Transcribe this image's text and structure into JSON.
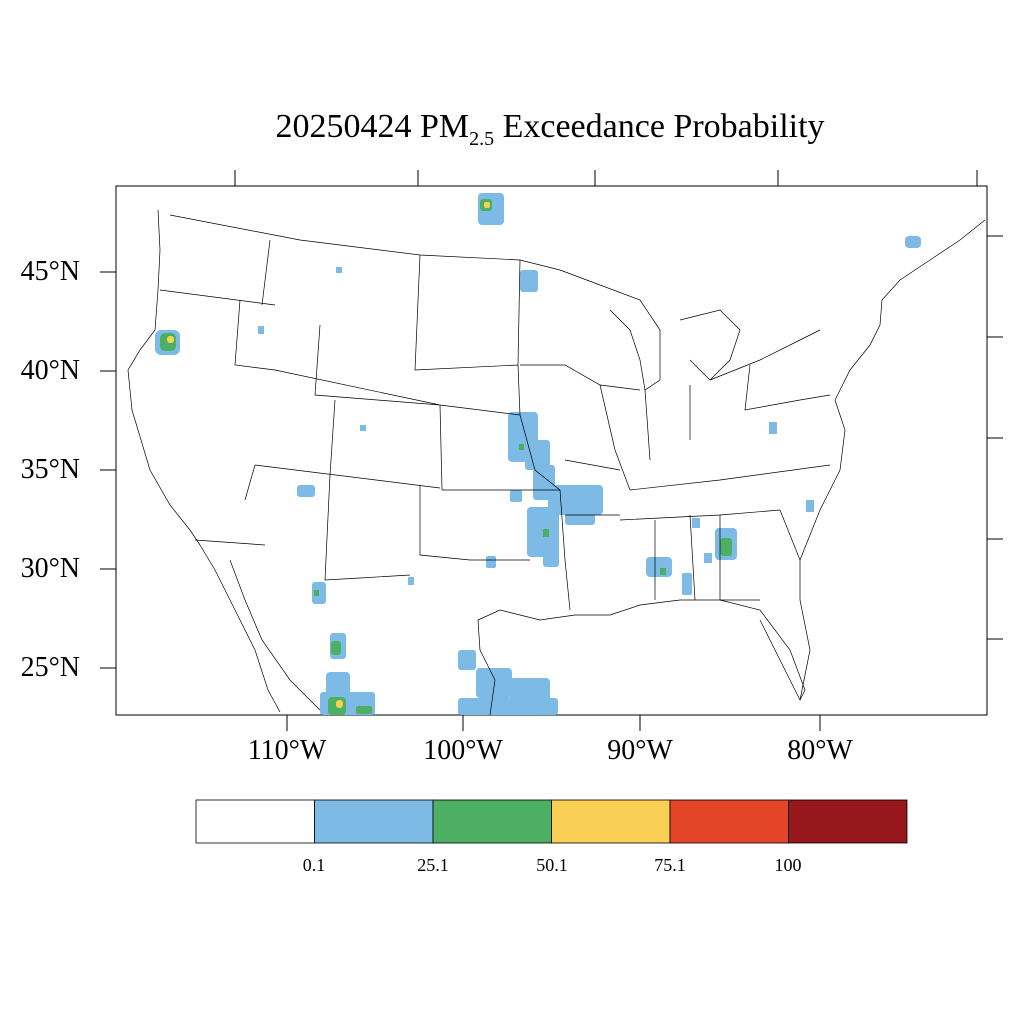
{
  "title": {
    "date": "20250424",
    "species": "PM",
    "species_sub": "2.5",
    "suffix": "Exceedance Probability"
  },
  "lat_labels": [
    "45°N",
    "40°N",
    "35°N",
    "30°N",
    "25°N"
  ],
  "lon_labels": [
    "110°W",
    "100°W",
    "90°W",
    "80°W"
  ],
  "colorbar": {
    "labels": [
      "0.1",
      "25.1",
      "50.1",
      "75.1",
      "100"
    ],
    "colors": [
      "#ffffff",
      "#7dbbe6",
      "#4caf64",
      "#f9cf55",
      "#e44428",
      "#96171c"
    ]
  }
}
